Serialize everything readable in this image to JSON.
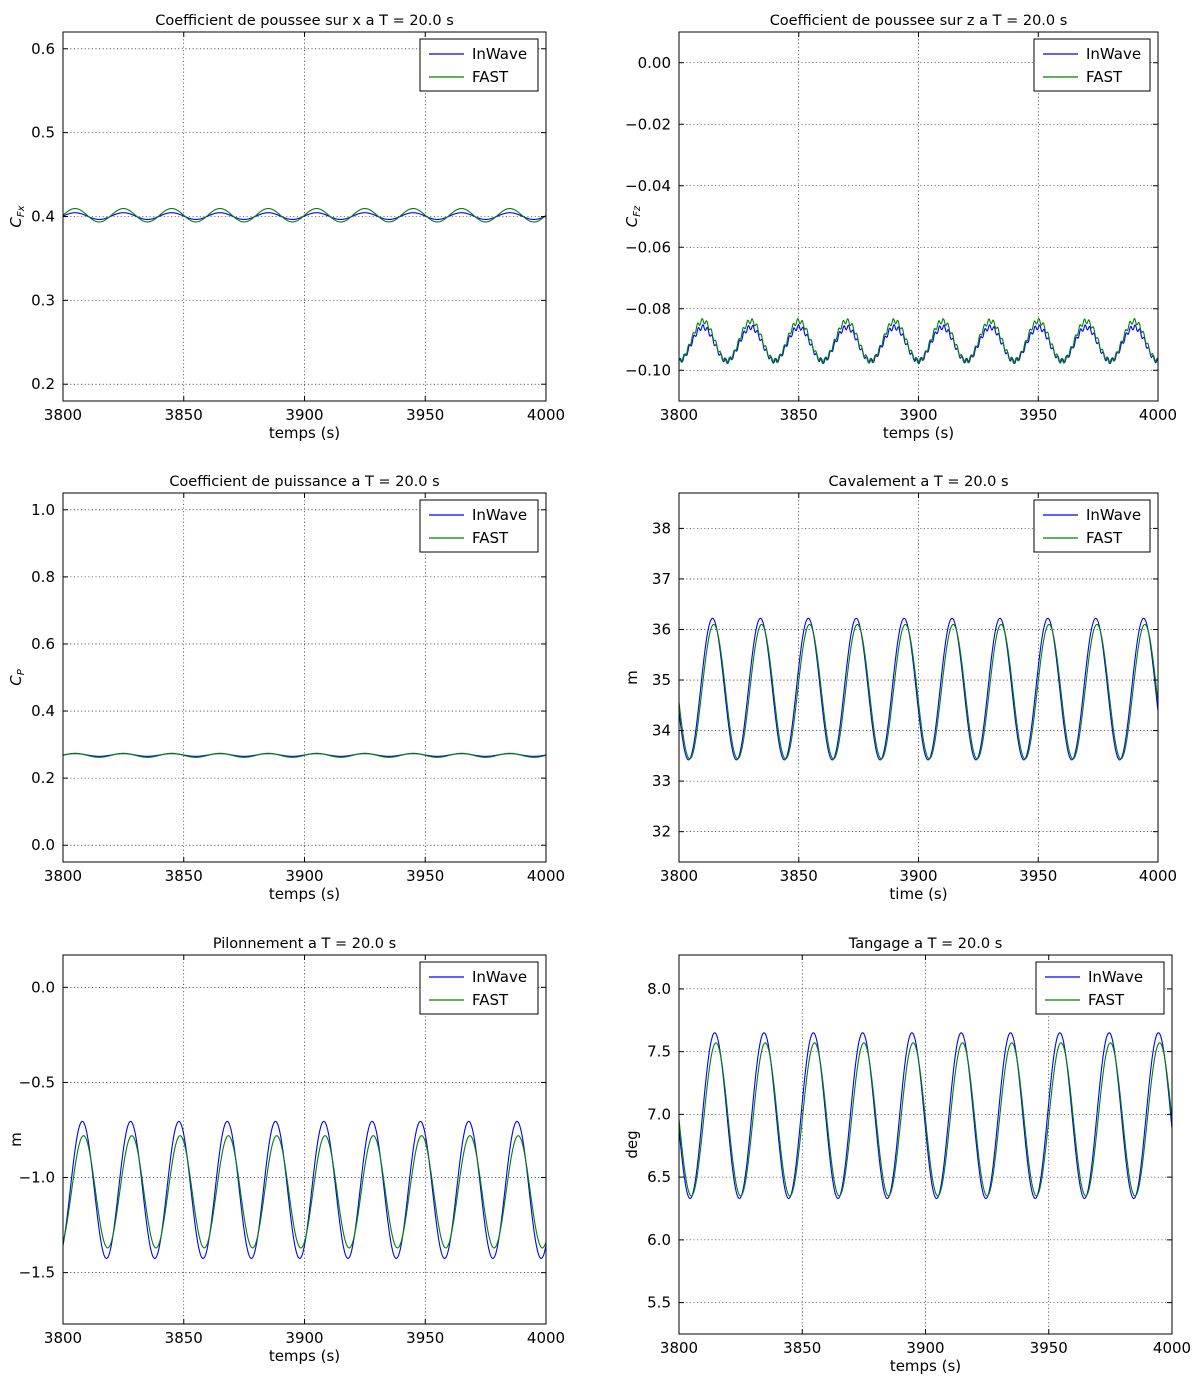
{
  "chart_data": [
    {
      "type": "line",
      "title": "Coefficient de poussee sur x a T = 20.0 s",
      "xlabel": "temps (s)",
      "ylabel": "C_Fx",
      "ylabel_main": "C",
      "ylabel_sub": "Fx",
      "xlim": [
        3800,
        4000
      ],
      "ylim": [
        0.18,
        0.62
      ],
      "xticks": [
        3800,
        3850,
        3900,
        3950,
        4000
      ],
      "yticks": [
        0.2,
        0.3,
        0.4,
        0.5,
        0.6
      ],
      "ytick_labels": [
        "0.2",
        "0.3",
        "0.4",
        "0.5",
        "0.6"
      ],
      "grid": true,
      "legend": "top-right",
      "series": [
        {
          "name": "InWave",
          "color": "#0000ff",
          "mean": 0.4005,
          "amplitude": 0.004,
          "period": 20,
          "phase_t0": 3805,
          "ripple": 0
        },
        {
          "name": "FAST",
          "color": "#008000",
          "mean": 0.4015,
          "amplitude": 0.008,
          "period": 20,
          "phase_t0": 3805,
          "ripple": 0
        }
      ]
    },
    {
      "type": "line",
      "title": "Coefficient de poussee sur z a T = 20.0 s",
      "xlabel": "temps (s)",
      "ylabel": "C_Fz",
      "ylabel_main": "C",
      "ylabel_sub": "Fz",
      "xlim": [
        3800,
        4000
      ],
      "ylim": [
        -0.11,
        0.01
      ],
      "xticks": [
        3800,
        3850,
        3900,
        3950,
        4000
      ],
      "yticks": [
        -0.1,
        -0.08,
        -0.06,
        -0.04,
        -0.02,
        0.0
      ],
      "ytick_labels": [
        "−0.10",
        "−0.08",
        "−0.06",
        "−0.04",
        "−0.02",
        "0.00"
      ],
      "grid": true,
      "legend": "top-right",
      "series": [
        {
          "name": "InWave",
          "color": "#0000ff",
          "mean": -0.0915,
          "amplitude": 0.0055,
          "period": 20,
          "phase_t0": 3810,
          "ripple": 0.0008
        },
        {
          "name": "FAST",
          "color": "#008000",
          "mean": -0.0905,
          "amplitude": 0.0065,
          "period": 20,
          "phase_t0": 3810,
          "ripple": 0.0008
        }
      ]
    },
    {
      "type": "line",
      "title": "Coefficient de puissance a T = 20.0 s",
      "xlabel": "temps (s)",
      "ylabel": "C_P",
      "ylabel_main": "C",
      "ylabel_sub": "P",
      "xlim": [
        3800,
        4000
      ],
      "ylim": [
        -0.05,
        1.05
      ],
      "xticks": [
        3800,
        3850,
        3900,
        3950,
        4000
      ],
      "yticks": [
        0.0,
        0.2,
        0.4,
        0.6,
        0.8,
        1.0
      ],
      "ytick_labels": [
        "0.0",
        "0.2",
        "0.4",
        "0.6",
        "0.8",
        "1.0"
      ],
      "grid": true,
      "legend": "top-right",
      "series": [
        {
          "name": "InWave",
          "color": "#0000ff",
          "mean": 0.269,
          "amplitude": 0.004,
          "period": 20,
          "phase_t0": 3805,
          "ripple": 0
        },
        {
          "name": "FAST",
          "color": "#008000",
          "mean": 0.268,
          "amplitude": 0.006,
          "period": 20,
          "phase_t0": 3805,
          "ripple": 0
        }
      ]
    },
    {
      "type": "line",
      "title": "Cavalement a T = 20.0 s",
      "xlabel": "time (s)",
      "ylabel": "m",
      "xlim": [
        3800,
        4000
      ],
      "ylim": [
        31.4,
        38.7
      ],
      "xticks": [
        3800,
        3850,
        3900,
        3950,
        4000
      ],
      "yticks": [
        32,
        33,
        34,
        35,
        36,
        37,
        38
      ],
      "ytick_labels": [
        "32",
        "33",
        "34",
        "35",
        "36",
        "37",
        "38"
      ],
      "grid": true,
      "legend": "top-right",
      "series": [
        {
          "name": "InWave",
          "color": "#0000ff",
          "mean": 34.82,
          "amplitude": 1.4,
          "period": 20,
          "phase_t0": 3814,
          "ripple": 0
        },
        {
          "name": "FAST",
          "color": "#008000",
          "mean": 34.77,
          "amplitude": 1.33,
          "period": 20,
          "phase_t0": 3814.5,
          "ripple": 0
        }
      ]
    },
    {
      "type": "line",
      "title": "Pilonnement a T = 20.0 s",
      "xlabel": "temps (s)",
      "ylabel": "m",
      "xlim": [
        3800,
        4000
      ],
      "ylim": [
        -1.77,
        0.17
      ],
      "xticks": [
        3800,
        3850,
        3900,
        3950,
        4000
      ],
      "yticks": [
        -1.5,
        -1.0,
        -0.5,
        0.0
      ],
      "ytick_labels": [
        "−1.5",
        "−1.0",
        "−0.5",
        "0.0"
      ],
      "grid": true,
      "legend": "top-right",
      "series": [
        {
          "name": "InWave",
          "color": "#0000ff",
          "mean": -1.065,
          "amplitude": 0.36,
          "period": 20,
          "phase_t0": 3808,
          "ripple": 0
        },
        {
          "name": "FAST",
          "color": "#008000",
          "mean": -1.075,
          "amplitude": 0.295,
          "period": 20,
          "phase_t0": 3808.5,
          "ripple": 0
        }
      ]
    },
    {
      "type": "line",
      "title": "Tangage a T = 20.0 s",
      "xlabel": "temps (s)",
      "ylabel": "deg",
      "xlim": [
        3800,
        4000
      ],
      "ylim": [
        5.25,
        8.27
      ],
      "xticks": [
        3800,
        3850,
        3900,
        3950,
        4000
      ],
      "yticks": [
        5.5,
        6.0,
        6.5,
        7.0,
        7.5,
        8.0
      ],
      "ytick_labels": [
        "5.5",
        "6.0",
        "6.5",
        "7.0",
        "7.5",
        "8.0"
      ],
      "grid": true,
      "legend": "top-right",
      "series": [
        {
          "name": "InWave",
          "color": "#0000ff",
          "mean": 6.99,
          "amplitude": 0.66,
          "period": 20,
          "phase_t0": 3814.5,
          "ripple": 0
        },
        {
          "name": "FAST",
          "color": "#008000",
          "mean": 6.96,
          "amplitude": 0.61,
          "period": 20,
          "phase_t0": 3815,
          "ripple": 0
        }
      ]
    }
  ]
}
